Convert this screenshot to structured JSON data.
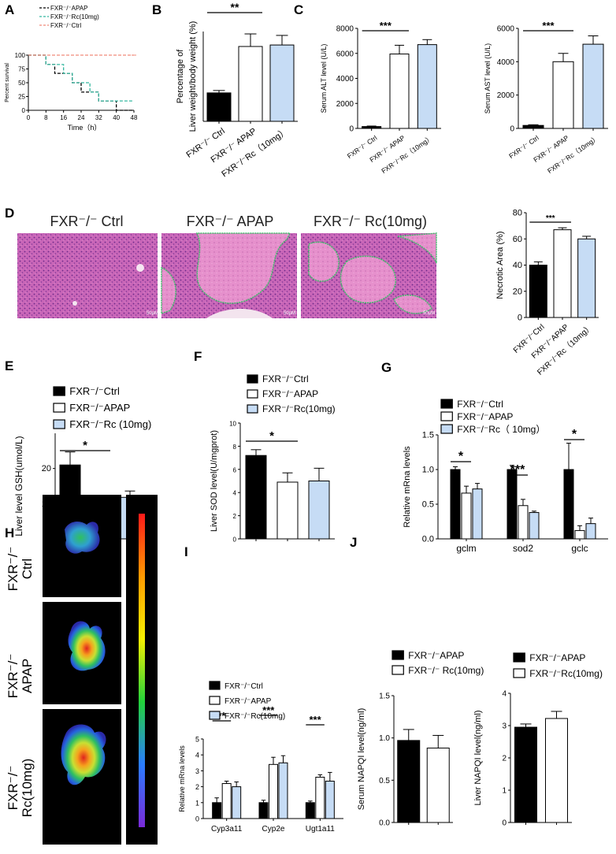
{
  "panel_letters": [
    "A",
    "B",
    "C",
    "D",
    "E",
    "F",
    "G",
    "H",
    "I",
    "J"
  ],
  "colors": {
    "ctrl": "#000000",
    "apap": "#ffffff",
    "rc": "#c6dcf5",
    "ctrl_line": "#f08a7a",
    "rc_line": "#36b8a0",
    "he_pink": "#c55fb4",
    "necrosis_outline": "#3fbf6a"
  },
  "histology": {
    "titles": [
      "FXR⁻/⁻ Ctrl",
      "FXR⁻/⁻ APAP",
      "FXR⁻/⁻ Rc(10mg)"
    ],
    "scale": "50μM"
  },
  "imaging": {
    "row_labels": [
      [
        "FXR⁻/⁻",
        "Ctrl"
      ],
      [
        "FXR⁻/⁻",
        "APAP"
      ],
      [
        "FXR⁻/⁻",
        "Rc(10mg)"
      ]
    ]
  },
  "chart_data": [
    {
      "id": "A",
      "type": "line",
      "ylabel": "Percent survival",
      "xlabel": "Time（h）",
      "xlim": [
        0,
        48
      ],
      "ylim": [
        0,
        100
      ],
      "xticks": [
        "0",
        "8",
        "16",
        "24",
        "32",
        "40",
        "48"
      ],
      "yticks": [
        "0",
        "25",
        "50",
        "75",
        "100"
      ],
      "legend": [
        "FXR⁻/⁻APAP",
        "FXR⁻/⁻Rc(10mg)",
        "FXR⁻/⁻Ctrl"
      ],
      "series": [
        {
          "name": "FXR⁻/⁻APAP",
          "x": [
            0,
            8,
            8,
            12,
            12,
            20,
            20,
            24,
            24,
            32,
            32,
            40,
            40,
            48
          ],
          "y": [
            100,
            100,
            83,
            83,
            67,
            67,
            50,
            50,
            33,
            33,
            17,
            17,
            0,
            0
          ]
        },
        {
          "name": "FXR⁻/⁻Rc(10mg)",
          "x": [
            0,
            8,
            8,
            16,
            16,
            20,
            20,
            28,
            28,
            32,
            32,
            40,
            40,
            48
          ],
          "y": [
            100,
            100,
            83,
            83,
            67,
            67,
            50,
            50,
            33,
            33,
            17,
            17,
            17,
            17
          ]
        },
        {
          "name": "FXR⁻/⁻Ctrl",
          "x": [
            0,
            48
          ],
          "y": [
            100,
            100
          ]
        }
      ]
    },
    {
      "id": "B",
      "type": "bar",
      "ylabel": [
        "Percentage of",
        "Liver weight/body weight (%)"
      ],
      "categories": [
        "FXR⁻/⁻ Ctrl",
        "FXR⁻/⁻ APAP",
        "FXR⁻/⁻Rc（10mg）"
      ],
      "values": [
        4.95,
        6.5,
        6.55
      ],
      "errors": [
        0.08,
        0.42,
        0.32
      ],
      "ylim": [
        4,
        7
      ],
      "yticks": [],
      "significance": [
        {
          "label": "**",
          "from": 0,
          "to": 1
        }
      ]
    },
    {
      "id": "C1",
      "type": "bar",
      "ylabel": "Serum ALT level (U/L)",
      "categories": [
        "FXR⁻/⁻ Ctrl",
        "FXR⁻/⁻ APAP",
        "FXR⁻/⁻Rc（10mg）"
      ],
      "values": [
        150,
        5950,
        6700
      ],
      "errors": [
        40,
        700,
        400
      ],
      "ylim": [
        0,
        8000
      ],
      "yticks": [
        "0",
        "2000",
        "4000",
        "6000",
        "8000"
      ],
      "significance": [
        {
          "label": "***",
          "from": 0,
          "to": 1
        }
      ]
    },
    {
      "id": "C2",
      "type": "bar",
      "ylabel": "Serum AST level (U/L)",
      "categories": [
        "FXR⁻/⁻ Ctrl",
        "FXR⁻/⁻ APAP",
        "FXR⁻/⁻Rc（10mg）"
      ],
      "values": [
        180,
        4000,
        5050
      ],
      "errors": [
        40,
        500,
        500
      ],
      "ylim": [
        0,
        6000
      ],
      "yticks": [
        "0",
        "2000",
        "4000",
        "6000"
      ],
      "significance": [
        {
          "label": "***",
          "from": 0,
          "to": 1
        }
      ]
    },
    {
      "id": "D",
      "type": "bar",
      "ylabel": "Necrotic Area (%)",
      "categories": [
        "FXR⁻/⁻Ctrl",
        "FXR⁻/⁻APAP",
        "FXR⁻/⁻Rc（10mg）"
      ],
      "values": [
        40,
        67,
        60
      ],
      "errors": [
        2.5,
        1.5,
        2
      ],
      "ylim": [
        0,
        80
      ],
      "yticks": [
        "0",
        "20",
        "40",
        "60",
        "80"
      ],
      "significance": [
        {
          "label": "***",
          "from": 0,
          "to": 1
        }
      ]
    },
    {
      "id": "E",
      "type": "bar",
      "ylabel": "Liver level GSH(umol/L)",
      "legend": [
        "FXR⁻/⁻Ctrl",
        "FXR⁻/⁻APAP",
        "FXR⁻/⁻Rc (10mg)"
      ],
      "categories": [
        "",
        "",
        ""
      ],
      "values": [
        21,
        10,
        11.8
      ],
      "errors": [
        3.7,
        1.5,
        1.8
      ],
      "ylim": [
        0,
        30
      ],
      "yticks": [
        "0",
        "10",
        "20"
      ],
      "significance": [
        {
          "label": "*",
          "from": 0,
          "to": 1
        }
      ]
    },
    {
      "id": "F",
      "type": "bar",
      "ylabel": "Liver SOD level(U/mgprot)",
      "legend": [
        "FXR⁻/⁻Ctrl",
        "FXR⁻/⁻APAP",
        "FXR⁻/⁻Rc(10mg)"
      ],
      "categories": [
        "",
        "",
        ""
      ],
      "values": [
        7.2,
        4.9,
        5.0
      ],
      "errors": [
        0.5,
        0.8,
        1.1
      ],
      "ylim": [
        0,
        10
      ],
      "yticks": [
        "0",
        "2",
        "4",
        "6",
        "8",
        "10"
      ],
      "significance": [
        {
          "label": "*",
          "from": 0,
          "to": 1
        }
      ]
    },
    {
      "id": "G",
      "type": "bar",
      "ylabel": "Relative mRna levels",
      "legend": [
        "FXR⁻/⁻Ctrl",
        "FXR⁻/⁻APAP",
        "FXR⁻/⁻Rc（ 10mg）"
      ],
      "categories": [
        "gclm",
        "sod2",
        "gclc"
      ],
      "series": [
        {
          "name": "FXR⁻/⁻Ctrl",
          "values": [
            1.0,
            1.0,
            1.0
          ],
          "errors": [
            0.04,
            0.06,
            0.38
          ]
        },
        {
          "name": "FXR⁻/⁻APAP",
          "values": [
            0.66,
            0.48,
            0.12
          ],
          "errors": [
            0.1,
            0.09,
            0.07
          ]
        },
        {
          "name": "FXR⁻/⁻Rc（ 10mg）",
          "values": [
            0.72,
            0.38,
            0.22
          ],
          "errors": [
            0.08,
            0.02,
            0.08
          ]
        }
      ],
      "ylim": [
        0,
        1.5
      ],
      "yticks": [
        "0.0",
        "0.5",
        "1.0",
        "1.5"
      ],
      "significance": [
        {
          "label": "*",
          "group": 0
        },
        {
          "label": "***",
          "group": 1
        },
        {
          "label": "*",
          "group": 2
        }
      ]
    },
    {
      "id": "I",
      "type": "bar",
      "ylabel": "Relative mRna levels",
      "legend": [
        "FXR⁻/⁻Ctrl",
        "FXR⁻/⁻APAP",
        "FXR⁻/⁻Rc(10mg)"
      ],
      "categories": [
        "Cyp3a11",
        "Cyp2e",
        "Ugt1a11"
      ],
      "series": [
        {
          "name": "FXR⁻/⁻Ctrl",
          "values": [
            1.0,
            1.0,
            1.0
          ],
          "errors": [
            0.3,
            0.15,
            0.1
          ]
        },
        {
          "name": "FXR⁻/⁻APAP",
          "values": [
            2.2,
            3.4,
            2.6
          ],
          "errors": [
            0.15,
            0.45,
            0.15
          ]
        },
        {
          "name": "FXR⁻/⁻Rc(10mg)",
          "values": [
            2.0,
            3.5,
            2.35
          ],
          "errors": [
            0.3,
            0.45,
            0.55
          ]
        }
      ],
      "ylim": [
        0,
        5
      ],
      "yticks": [
        "0",
        "1",
        "2",
        "3",
        "4",
        "5"
      ],
      "significance": [
        {
          "label": "**",
          "group": 0
        },
        {
          "label": "***",
          "group": 1
        },
        {
          "label": "***",
          "group": 2
        }
      ]
    },
    {
      "id": "J1",
      "type": "bar",
      "ylabel": "Serum NAPQI level(ng/ml)",
      "legend": [
        "FXR⁻/⁻APAP",
        "FXR⁻/⁻ Rc(10mg)"
      ],
      "categories": [
        "",
        ""
      ],
      "values": [
        0.97,
        0.88
      ],
      "errors": [
        0.13,
        0.15
      ],
      "ylim": [
        0,
        1.5
      ],
      "yticks": [
        "0.0",
        "0.5",
        "1.0",
        "1.5"
      ]
    },
    {
      "id": "J2",
      "type": "bar",
      "ylabel": "Liver NAPQI level(ng/ml)",
      "legend": [
        "FXR⁻/⁻APAP",
        "FXR⁻/⁻Rc(10mg)"
      ],
      "categories": [
        "",
        ""
      ],
      "values": [
        2.95,
        3.22
      ],
      "errors": [
        0.1,
        0.22
      ],
      "ylim": [
        0,
        4
      ],
      "yticks": [
        "0",
        "1",
        "2",
        "3",
        "4"
      ]
    }
  ]
}
